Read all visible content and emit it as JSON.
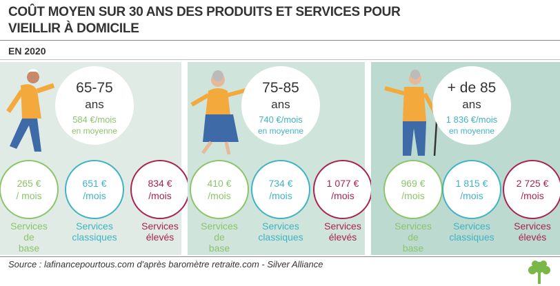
{
  "header": {
    "title": "COÛT MOYEN SUR 30 ANS DES PRODUITS ET SERVICES POUR VIEILLIR À DOMICILE",
    "subtitle": "EN 2020"
  },
  "panels": [
    {
      "age": "65-75",
      "age_unit": "ans",
      "average": "584 €/mois",
      "average_note": "en moyenne",
      "costs": [
        {
          "amount": "265 €",
          "unit": "/ mois",
          "label": "Services de base"
        },
        {
          "amount": "651 €",
          "unit": "/mois",
          "label": "Services classiques"
        },
        {
          "amount": "834 €",
          "unit": "/mois",
          "label": "Services élevés"
        }
      ]
    },
    {
      "age": "75-85",
      "age_unit": "ans",
      "average": "740 €/mois",
      "average_note": "en moyenne",
      "costs": [
        {
          "amount": "410 €",
          "unit": "/mois",
          "label": "Services de base"
        },
        {
          "amount": "734 €",
          "unit": "/mois",
          "label": "Services classiques"
        },
        {
          "amount": "1 077 €",
          "unit": "/mois",
          "label": "Services élevés"
        }
      ]
    },
    {
      "age": "+ de 85",
      "age_unit": "ans",
      "average": "1 836 €/mois",
      "average_note": "en moyenne",
      "costs": [
        {
          "amount": "969 €",
          "unit": "/mois",
          "label": "Services de base"
        },
        {
          "amount": "1 815 €",
          "unit": "/mois",
          "label": "Services classiques"
        },
        {
          "amount": "2 725 €",
          "unit": "/mois",
          "label": "Services élevés"
        }
      ]
    }
  ],
  "source": "Source : lafinancepourtous.com d'après baromètre retraite.com - Silver Alliance"
}
